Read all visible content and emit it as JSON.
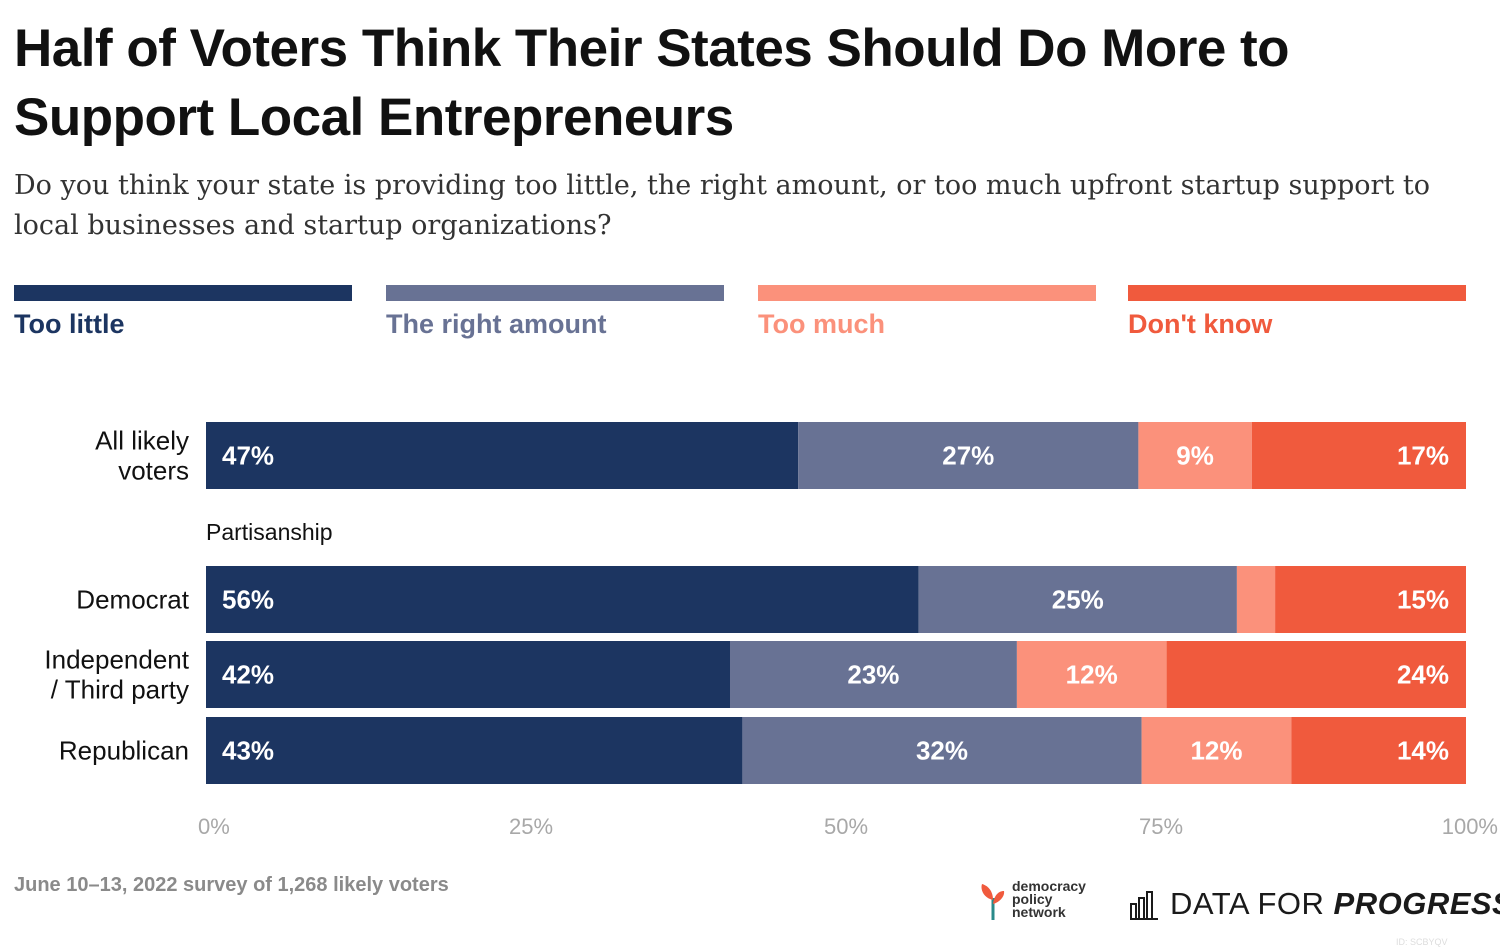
{
  "title": "Half of Voters Think Their States Should Do More to Support Local Entrepreneurs",
  "subtitle": "Do you think your state is providing too little, the right amount, or too much upfront startup support to local businesses and startup organizations?",
  "legend": [
    {
      "label": "Too little",
      "color": "#1c3561"
    },
    {
      "label": "The right amount",
      "color": "#687294"
    },
    {
      "label": "Too much",
      "color": "#fb917b"
    },
    {
      "label": "Don't know",
      "color": "#f05a3d"
    }
  ],
  "footer": {
    "note": "June 10–13, 2022 survey of 1,268 likely voters",
    "dpn_logo_text": "democracy policy network",
    "dfp_logo_text": "DATA FOR PROGRESS",
    "id_tag": "ID: SCBYQV"
  },
  "chart_data": {
    "type": "bar",
    "orientation": "horizontal",
    "stacked": true,
    "section_label": "Partisanship",
    "categories": [
      "All likely voters",
      "Democrat",
      "Independent / Third party",
      "Republican"
    ],
    "series": [
      {
        "name": "Too little",
        "color": "#1c3561",
        "values": [
          47,
          56,
          42,
          43
        ],
        "labels": [
          "47%",
          "56%",
          "42%",
          "43%"
        ]
      },
      {
        "name": "The right amount",
        "color": "#687294",
        "values": [
          27,
          25,
          23,
          32
        ],
        "labels": [
          "27%",
          "25%",
          "23%",
          "32%"
        ]
      },
      {
        "name": "Too much",
        "color": "#fb917b",
        "values": [
          9,
          3,
          12,
          12
        ],
        "labels": [
          "9%",
          "",
          "12%",
          "12%"
        ]
      },
      {
        "name": "Don't know",
        "color": "#f05a3d",
        "values": [
          17,
          15,
          24,
          14
        ],
        "labels": [
          "17%",
          "15%",
          "24%",
          "14%"
        ]
      }
    ],
    "x_ticks": [
      "0%",
      "25%",
      "50%",
      "75%",
      "100%"
    ],
    "xlim": [
      0,
      100
    ],
    "legend_position": "top"
  }
}
